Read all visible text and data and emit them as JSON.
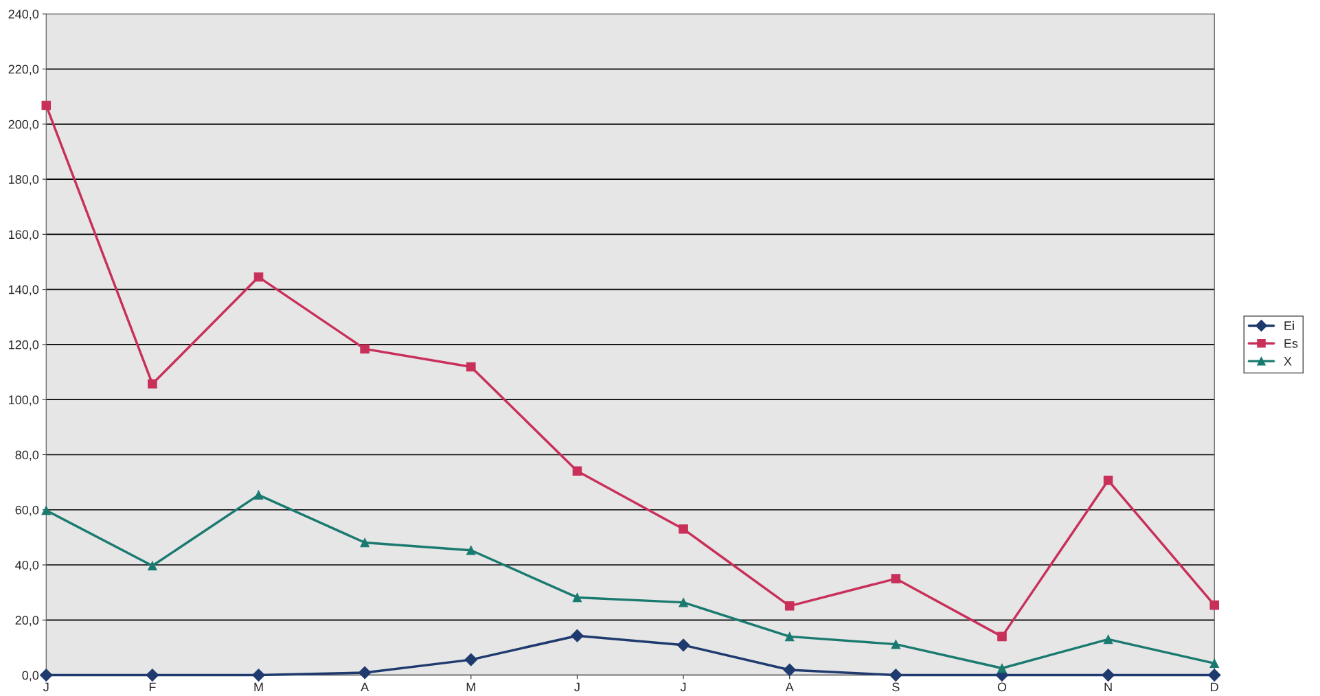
{
  "chart_data": {
    "type": "line",
    "categories": [
      "J",
      "F",
      "M",
      "A",
      "M",
      "J",
      "J",
      "A",
      "S",
      "O",
      "N",
      "D"
    ],
    "series": [
      {
        "name": "Ei",
        "color": "#1f3a6e",
        "marker": "diamond",
        "values": [
          0,
          0,
          0,
          0.9,
          5.6,
          14.3,
          10.9,
          1.9,
          0,
          0,
          0,
          0
        ]
      },
      {
        "name": "Es",
        "color": "#c8305a",
        "marker": "square",
        "values": [
          206.8,
          105.7,
          144.5,
          118.4,
          111.9,
          74.1,
          53.0,
          25.1,
          35.0,
          14.0,
          70.7,
          25.4
        ]
      },
      {
        "name": "X",
        "color": "#1a7a70",
        "marker": "triangle",
        "values": [
          59.8,
          39.7,
          65.4,
          48.1,
          45.3,
          28.2,
          26.4,
          14.0,
          11.2,
          2.5,
          13.0,
          4.3
        ]
      }
    ],
    "ylim": [
      0,
      240
    ],
    "yticks": [
      {
        "value": 0,
        "label": "0,0"
      },
      {
        "value": 20,
        "label": "20,0"
      },
      {
        "value": 40,
        "label": "40,0"
      },
      {
        "value": 60,
        "label": "60,0"
      },
      {
        "value": 80,
        "label": "80,0"
      },
      {
        "value": 100,
        "label": "100,0"
      },
      {
        "value": 120,
        "label": "120,0"
      },
      {
        "value": 140,
        "label": "140,0"
      },
      {
        "value": 160,
        "label": "160,0"
      },
      {
        "value": 180,
        "label": "180,0"
      },
      {
        "value": 200,
        "label": "200,0"
      },
      {
        "value": 220,
        "label": "220,0"
      },
      {
        "value": 240,
        "label": "240,0"
      }
    ],
    "grid": "y",
    "legend": "right",
    "line_style": "solid"
  }
}
